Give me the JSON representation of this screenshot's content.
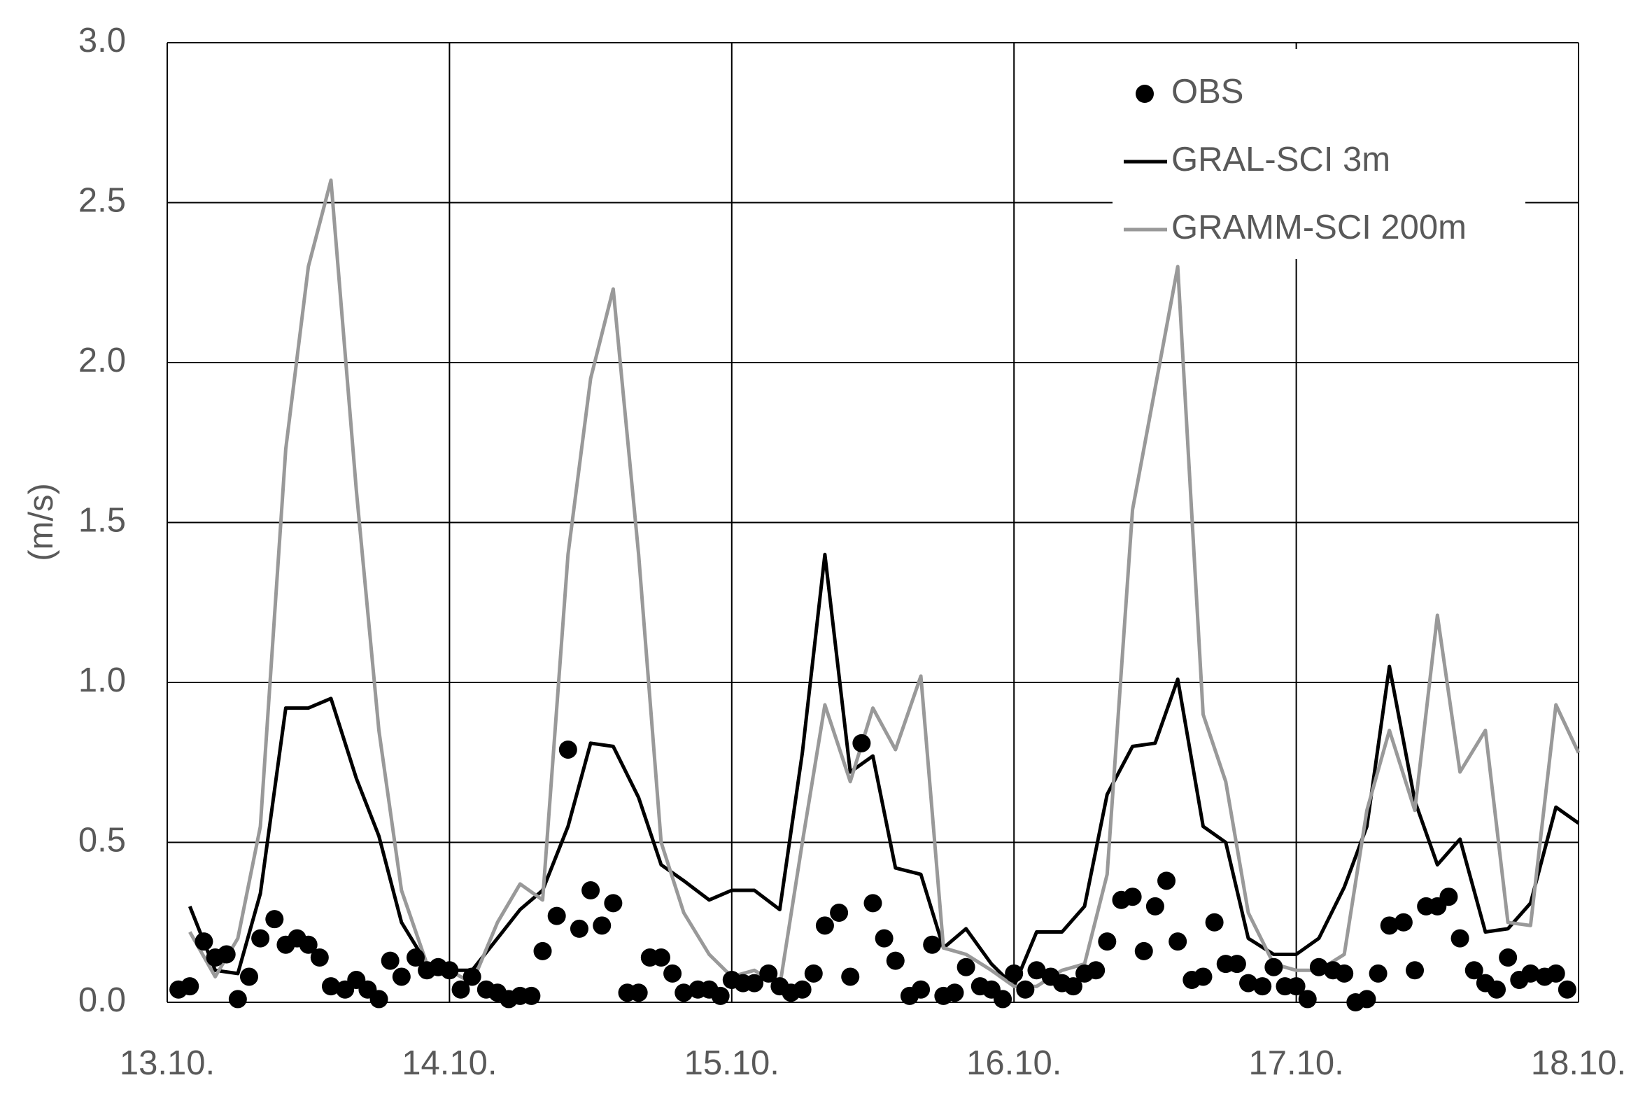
{
  "chart_data": {
    "type": "line",
    "y_label": "(m/s)",
    "xlim": [
      13,
      18
    ],
    "xticks": [
      {
        "value": 13,
        "label": "13.10."
      },
      {
        "value": 14,
        "label": "14.10."
      },
      {
        "value": 15,
        "label": "15.10."
      },
      {
        "value": 16,
        "label": "16.10."
      },
      {
        "value": 17,
        "label": "17.10."
      },
      {
        "value": 18,
        "label": "18.10."
      }
    ],
    "ylim": [
      0,
      3
    ],
    "yticks": [
      {
        "value": 0,
        "label": "0.0"
      },
      {
        "value": 0.5,
        "label": "0.5"
      },
      {
        "value": 1,
        "label": "1.0"
      },
      {
        "value": 1.5,
        "label": "1.5"
      },
      {
        "value": 2,
        "label": "2.0"
      },
      {
        "value": 2.5,
        "label": "2.5"
      },
      {
        "value": 3,
        "label": "3.0"
      }
    ],
    "grid": true,
    "legend": "upper right",
    "series": [
      {
        "name": "OBS",
        "color": "#000000",
        "style": "markers",
        "x": [
          13.04,
          13.08,
          13.13,
          13.17,
          13.21,
          13.25,
          13.29,
          13.33,
          13.38,
          13.42,
          13.46,
          13.5,
          13.54,
          13.58,
          13.63,
          13.67,
          13.71,
          13.75,
          13.79,
          13.83,
          13.88,
          13.92,
          13.96,
          14.0,
          14.04,
          14.08,
          14.13,
          14.17,
          14.21,
          14.25,
          14.29,
          14.33,
          14.38,
          14.42,
          14.46,
          14.5,
          14.54,
          14.58,
          14.63,
          14.67,
          14.71,
          14.75,
          14.79,
          14.83,
          14.88,
          14.92,
          14.96,
          15.0,
          15.04,
          15.08,
          15.13,
          15.17,
          15.21,
          15.25,
          15.29,
          15.33,
          15.38,
          15.42,
          15.46,
          15.5,
          15.54,
          15.58,
          15.63,
          15.67,
          15.71,
          15.75,
          15.79,
          15.83,
          15.88,
          15.92,
          15.96,
          16.0,
          16.04,
          16.08,
          16.13,
          16.17,
          16.21,
          16.25,
          16.29,
          16.33,
          16.38,
          16.42,
          16.46,
          16.5,
          16.54,
          16.58,
          16.63,
          16.67,
          16.71,
          16.75,
          16.79,
          16.83,
          16.88,
          16.92,
          16.96,
          17.0,
          17.04,
          17.08,
          17.13,
          17.17,
          17.21,
          17.25,
          17.29,
          17.33,
          17.38,
          17.42,
          17.46,
          17.5,
          17.54,
          17.58,
          17.63,
          17.67,
          17.71,
          17.75,
          17.79,
          17.83,
          17.88,
          17.92,
          17.96
        ],
        "values": [
          0.04,
          0.05,
          0.19,
          0.14,
          0.15,
          0.01,
          0.08,
          0.2,
          0.26,
          0.18,
          0.2,
          0.18,
          0.14,
          0.05,
          0.04,
          0.07,
          0.04,
          0.01,
          0.13,
          0.08,
          0.14,
          0.1,
          0.11,
          0.1,
          0.04,
          0.08,
          0.04,
          0.03,
          0.01,
          0.02,
          0.02,
          0.16,
          0.27,
          0.79,
          0.23,
          0.35,
          0.24,
          0.31,
          0.03,
          0.03,
          0.14,
          0.14,
          0.09,
          0.03,
          0.04,
          0.04,
          0.02,
          0.07,
          0.06,
          0.06,
          0.09,
          0.05,
          0.03,
          0.04,
          0.09,
          0.24,
          0.28,
          0.08,
          0.81,
          0.31,
          0.2,
          0.13,
          0.02,
          0.04,
          0.18,
          0.02,
          0.03,
          0.11,
          0.05,
          0.04,
          0.01,
          0.09,
          0.04,
          0.1,
          0.08,
          0.06,
          0.05,
          0.09,
          0.1,
          0.19,
          0.32,
          0.33,
          0.16,
          0.3,
          0.38,
          0.19,
          0.07,
          0.08,
          0.25,
          0.12,
          0.12,
          0.06,
          0.05,
          0.11,
          0.05,
          0.05,
          0.01,
          0.11,
          0.1,
          0.09,
          0,
          0.01,
          0.09,
          0.24,
          0.25,
          0.1,
          0.3,
          0.3,
          0.33,
          0.2,
          0.1,
          0.06,
          0.04,
          0.14,
          0.07,
          0.09,
          0.08,
          0.09,
          0.04
        ]
      },
      {
        "name": "GRAL-SCI 3m",
        "color": "#000000",
        "style": "line",
        "x": [
          13.08,
          13.17,
          13.25,
          13.33,
          13.42,
          13.5,
          13.58,
          13.67,
          13.75,
          13.83,
          13.92,
          14.0,
          14.08,
          14.17,
          14.25,
          14.33,
          14.42,
          14.5,
          14.58,
          14.67,
          14.75,
          14.83,
          14.92,
          15.0,
          15.08,
          15.17,
          15.25,
          15.33,
          15.42,
          15.5,
          15.58,
          15.67,
          15.75,
          15.83,
          15.92,
          16.0,
          16.08,
          16.17,
          16.25,
          16.33,
          16.42,
          16.5,
          16.58,
          16.67,
          16.75,
          16.83,
          16.92,
          17.0,
          17.08,
          17.17,
          17.25,
          17.33,
          17.42,
          17.5,
          17.58,
          17.67,
          17.75,
          17.83,
          17.92,
          18.0
        ],
        "values": [
          0.3,
          0.1,
          0.09,
          0.34,
          0.92,
          0.92,
          0.95,
          0.7,
          0.52,
          0.25,
          0.12,
          0.1,
          0.1,
          0.2,
          0.29,
          0.35,
          0.55,
          0.81,
          0.8,
          0.64,
          0.43,
          0.38,
          0.32,
          0.35,
          0.35,
          0.29,
          0.78,
          1.4,
          0.72,
          0.77,
          0.42,
          0.4,
          0.17,
          0.23,
          0.12,
          0.05,
          0.22,
          0.22,
          0.3,
          0.65,
          0.8,
          0.81,
          1.01,
          0.55,
          0.5,
          0.2,
          0.15,
          0.15,
          0.2,
          0.36,
          0.55,
          1.05,
          0.63,
          0.43,
          0.51,
          0.22,
          0.23,
          0.31,
          0.61,
          0.56
        ]
      },
      {
        "name": "GRAMM-SCI 200m",
        "color": "#999999",
        "style": "line",
        "x": [
          13.08,
          13.17,
          13.25,
          13.33,
          13.42,
          13.5,
          13.58,
          13.67,
          13.75,
          13.83,
          13.92,
          14.0,
          14.08,
          14.17,
          14.25,
          14.33,
          14.42,
          14.5,
          14.58,
          14.67,
          14.75,
          14.83,
          14.92,
          15.0,
          15.08,
          15.17,
          15.25,
          15.33,
          15.42,
          15.5,
          15.58,
          15.67,
          15.75,
          15.83,
          15.92,
          16.0,
          16.08,
          16.17,
          16.25,
          16.33,
          16.42,
          16.5,
          16.58,
          16.67,
          16.75,
          16.83,
          16.92,
          17.0,
          17.08,
          17.17,
          17.25,
          17.33,
          17.42,
          17.5,
          17.58,
          17.67,
          17.75,
          17.83,
          17.92,
          18.0
        ],
        "values": [
          0.22,
          0.08,
          0.2,
          0.55,
          1.73,
          2.3,
          2.57,
          1.6,
          0.85,
          0.35,
          0.12,
          0.1,
          0.06,
          0.25,
          0.37,
          0.32,
          1.4,
          1.95,
          2.23,
          1.4,
          0.5,
          0.28,
          0.15,
          0.08,
          0.1,
          0.05,
          0.5,
          0.93,
          0.69,
          0.92,
          0.79,
          1.02,
          0.17,
          0.15,
          0.1,
          0.05,
          0.05,
          0.1,
          0.12,
          0.4,
          1.54,
          1.92,
          2.3,
          0.9,
          0.69,
          0.28,
          0.12,
          0.1,
          0.1,
          0.15,
          0.6,
          0.85,
          0.6,
          1.21,
          0.72,
          0.85,
          0.25,
          0.24,
          0.93,
          0.78
        ]
      }
    ]
  }
}
